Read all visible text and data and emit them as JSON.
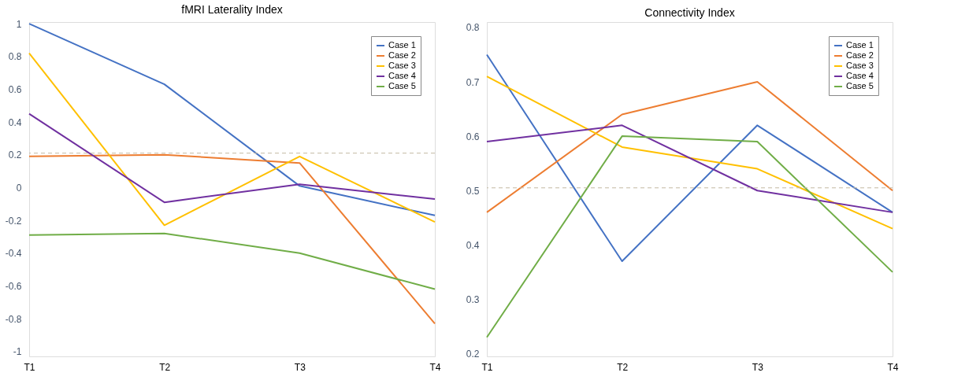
{
  "chart_data": [
    {
      "type": "line",
      "title": "fMRI Laterality Index",
      "categories": [
        "T1",
        "T2",
        "T3",
        "T4"
      ],
      "series": [
        {
          "name": "Case 1",
          "color": "#4472c4",
          "values": [
            1.0,
            0.63,
            0.01,
            -0.17
          ]
        },
        {
          "name": "Case 2",
          "color": "#ed7d31",
          "values": [
            0.19,
            0.2,
            0.15,
            -0.83
          ]
        },
        {
          "name": "Case 3",
          "color": "#ffc000",
          "values": [
            0.82,
            -0.23,
            0.19,
            -0.21
          ]
        },
        {
          "name": "Case 4",
          "color": "#7030a0",
          "values": [
            0.45,
            -0.09,
            0.02,
            -0.07
          ]
        },
        {
          "name": "Case 5",
          "color": "#70ad47",
          "values": [
            -0.29,
            -0.28,
            -0.4,
            -0.62
          ]
        }
      ],
      "ylim": [
        -1.03,
        1.01
      ],
      "yticks": [
        -1,
        -0.8,
        -0.6,
        -0.4,
        -0.2,
        0,
        0.2,
        0.4,
        0.6,
        0.8,
        1
      ],
      "ref_lines": [
        {
          "axis": "y",
          "value": 0.21,
          "color": "#c4b9a3",
          "line_style": "dashed"
        }
      ],
      "grid": false,
      "legend": "top right",
      "line_style": "solid",
      "marker": "none"
    },
    {
      "type": "line",
      "title": "Connectivity Index",
      "categories": [
        "T1",
        "T2",
        "T3",
        "T4"
      ],
      "series": [
        {
          "name": "Case 1",
          "color": "#4472c4",
          "values": [
            0.75,
            0.37,
            0.62,
            0.46
          ]
        },
        {
          "name": "Case 2",
          "color": "#ed7d31",
          "values": [
            0.46,
            0.64,
            0.7,
            0.5
          ]
        },
        {
          "name": "Case 3",
          "color": "#ffc000",
          "values": [
            0.71,
            0.58,
            0.54,
            0.43
          ]
        },
        {
          "name": "Case 4",
          "color": "#7030a0",
          "values": [
            0.59,
            0.62,
            0.5,
            0.46
          ]
        },
        {
          "name": "Case 5",
          "color": "#70ad47",
          "values": [
            0.23,
            0.6,
            0.59,
            0.35
          ]
        }
      ],
      "ylim": [
        0.195,
        0.81
      ],
      "yticks": [
        0.2,
        0.3,
        0.4,
        0.5,
        0.6,
        0.7,
        0.8
      ],
      "ref_lines": [
        {
          "axis": "y",
          "value": 0.505,
          "color": "#c4b9a3",
          "line_style": "dashed"
        }
      ],
      "grid": false,
      "legend": "top right",
      "line_style": "solid",
      "marker": "none"
    }
  ]
}
